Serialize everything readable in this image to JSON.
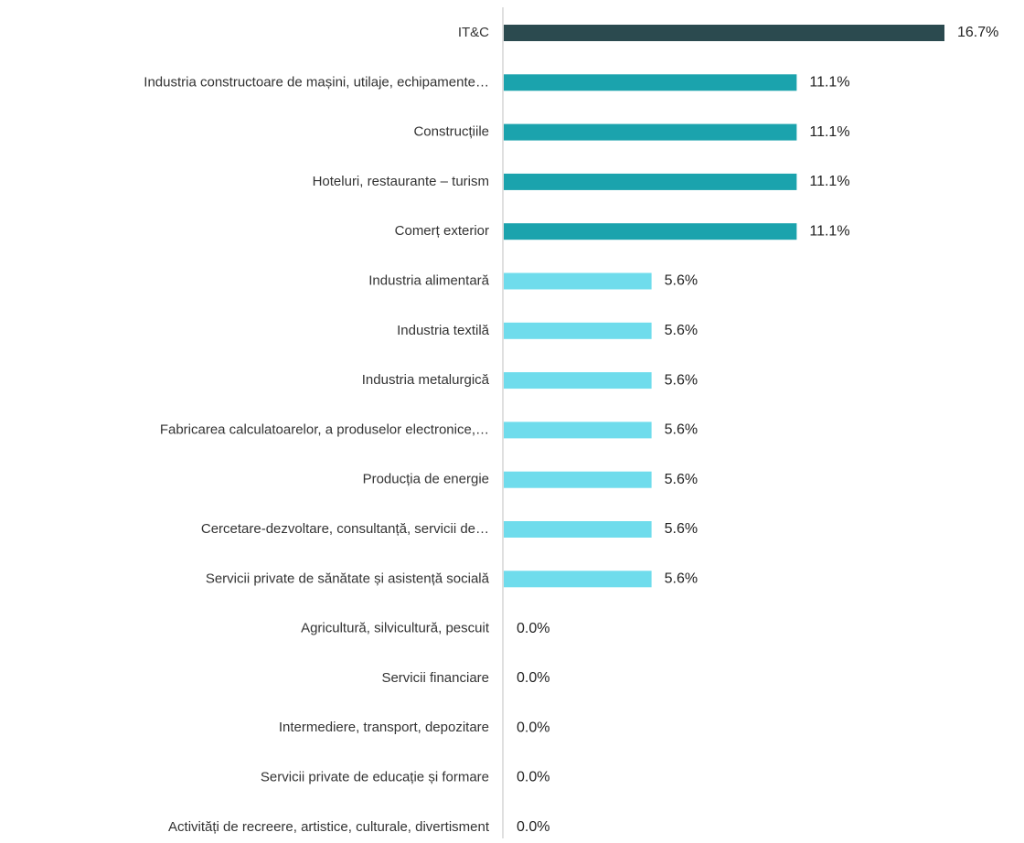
{
  "chart_data": {
    "type": "hbar",
    "categories": [
      "IT&C",
      "Industria constructoare de mașini, utilaje, echipamente…",
      "Construcțiile",
      "Hoteluri, restaurante – turism",
      "Comerț exterior",
      "Industria alimentară",
      "Industria textilă",
      "Industria metalurgică",
      "Fabricarea calculatoarelor, a produselor electronice,…",
      "Producția de energie",
      "Cercetare-dezvoltare, consultanță, servicii de…",
      "Servicii private de sănătate și asistență socială",
      "Agricultură, silvicultură, pescuit",
      "Servicii financiare",
      "Intermediere, transport, depozitare",
      "Servicii private de educație și formare",
      "Activități de recreere, artistice, culturale, divertisment"
    ],
    "values": [
      16.7,
      11.1,
      11.1,
      11.1,
      11.1,
      5.6,
      5.6,
      5.6,
      5.6,
      5.6,
      5.6,
      5.6,
      0.0,
      0.0,
      0.0,
      0.0,
      0.0
    ],
    "value_labels": [
      "16.7%",
      "11.1%",
      "11.1%",
      "11.1%",
      "11.1%",
      "5.6%",
      "5.6%",
      "5.6%",
      "5.6%",
      "5.6%",
      "5.6%",
      "5.6%",
      "0.0%",
      "0.0%",
      "0.0%",
      "0.0%",
      "0.0%"
    ],
    "colors": [
      "#2b4a4f",
      "#1ba3ad",
      "#1ba3ad",
      "#1ba3ad",
      "#1ba3ad",
      "#6fdcec",
      "#6fdcec",
      "#6fdcec",
      "#6fdcec",
      "#6fdcec",
      "#6fdcec",
      "#6fdcec",
      "#6fdcec",
      "#6fdcec",
      "#6fdcec",
      "#6fdcec",
      "#6fdcec"
    ]
  }
}
